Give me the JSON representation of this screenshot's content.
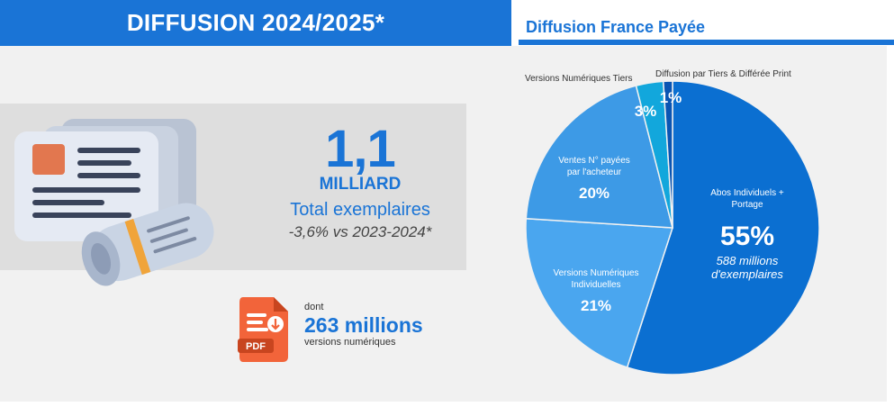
{
  "header": {
    "left_title": "DIFFUSION 2024/2025*",
    "right_title": "Diffusion France Payée"
  },
  "stats": {
    "total_value": "1,1",
    "total_unit": "MILLIARD",
    "total_label": "Total exemplaires",
    "total_change": "-3,6% vs 2023-2024*",
    "digital_prefix": "dont",
    "digital_value": "263 millions",
    "digital_label": "versions numériques",
    "pdf_label": "PDF"
  },
  "chart_data": {
    "type": "pie",
    "title": "Diffusion France Payée",
    "slices": [
      {
        "key": "abos",
        "name": "Abos Individuels + Portage",
        "name_lines": [
          "Abos Individuels +",
          "Portage"
        ],
        "value": 55,
        "pct_label": "55%",
        "note_lines": [
          "588 millions",
          "d'exemplaires"
        ],
        "color": "#0b6fd1"
      },
      {
        "key": "vni",
        "name": "Versions Numériques Individuelles",
        "name_lines": [
          "Versions Numériques",
          "Individuelles"
        ],
        "value": 21,
        "pct_label": "21%",
        "color": "#4aa6ef"
      },
      {
        "key": "ventes",
        "name": "Ventes N° payées par l'acheteur",
        "name_lines": [
          "Ventes N° payées",
          "par l'acheteur"
        ],
        "value": 20,
        "pct_label": "20%",
        "color": "#3d9ae6"
      },
      {
        "key": "vnt",
        "name": "Versions Numériques Tiers",
        "value": 3,
        "pct_label": "3%",
        "color": "#12a7dc"
      },
      {
        "key": "tiers",
        "name": "Diffusion par Tiers & Différée Print",
        "value": 1,
        "pct_label": "1%",
        "color": "#0a55b3"
      }
    ]
  },
  "colors": {
    "accent": "#1a74d6",
    "panel": "#f1f1f1",
    "band": "#dedede"
  }
}
